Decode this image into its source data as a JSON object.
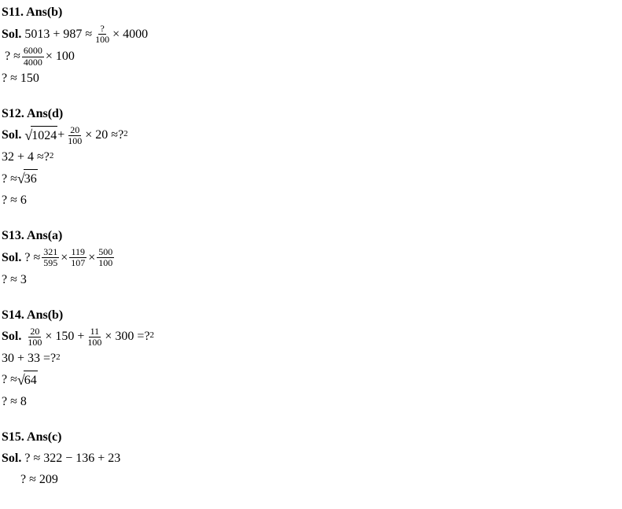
{
  "solutions": [
    {
      "id": "s11",
      "ans_label": "S11. Ans(b)",
      "sol_label": "Sol.",
      "line1_a": "5013 + 987  ≈ ",
      "line1_frac_num": "?",
      "line1_frac_den": "100",
      "line1_b": "× 4000",
      "line2_a": "? ≈ ",
      "line2_frac_num": "6000",
      "line2_frac_den": "4000",
      "line2_b": "× 100",
      "line3": "? ≈  150"
    },
    {
      "id": "s12",
      "ans_label": "S12. Ans(d)",
      "sol_label": "Sol.",
      "line1_sqrt": "1024",
      "line1_a": " + ",
      "line1_frac_num": "20",
      "line1_frac_den": "100",
      "line1_b": "× 20 ≈?",
      "line1_sup": "2",
      "line2_a": " 32 + 4 ≈?",
      "line2_sup": "2",
      "line3_a": " ? ≈ ",
      "line3_sqrt": "36",
      "line4": "? ≈ 6"
    },
    {
      "id": "s13",
      "ans_label": "S13. Ans(a)",
      "sol_label": "Sol.",
      "line1_a": "? ≈ ",
      "f1_num": "321",
      "f1_den": "595",
      "f2_num": "119",
      "f2_den": "107",
      "f3_num": "500",
      "f3_den": "100",
      "mult": "×",
      "line2": " ? ≈ 3"
    },
    {
      "id": "s14",
      "ans_label": "S14. Ans(b)",
      "sol_label": "Sol.",
      "f1_num": "20",
      "f1_den": "100",
      "line1_a": "× 150 + ",
      "f2_num": "11",
      "f2_den": "100",
      "line1_b": "× 300 =?",
      "line1_sup": "2",
      "line2_a": " 30 + 33 =?",
      "line2_sup": "2",
      "line3_a": " ? ≈ ",
      "line3_sqrt": "64",
      "line4": "? ≈ 8"
    },
    {
      "id": "s15",
      "ans_label": "S15. Ans(c)",
      "sol_label": "Sol.",
      "line1": "? ≈ 322 − 136 + 23",
      "line2": "? ≈ 209"
    }
  ]
}
